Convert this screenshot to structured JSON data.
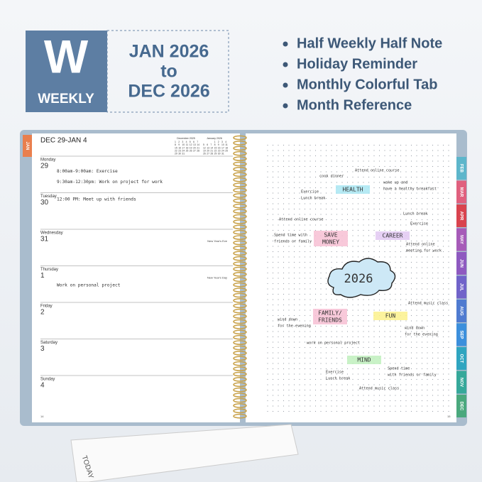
{
  "badge": {
    "letter": "W",
    "label": "WEEKLY",
    "range": [
      "JAN 2026",
      "to",
      "DEC 2026"
    ]
  },
  "features": [
    "Half Weekly Half Note",
    "Holiday Reminder",
    "Monthly Colorful Tab",
    "Month Reference"
  ],
  "left_page": {
    "tab": "JAN",
    "heading": "DEC 29-JAN 4",
    "page_number": "14",
    "mini_calendars": [
      {
        "title": "December 2025",
        "weeks": [
          [
            1,
            2,
            3,
            4,
            5,
            6,
            7
          ],
          [
            8,
            9,
            10,
            11,
            12,
            13,
            14
          ],
          [
            15,
            16,
            17,
            18,
            19,
            20,
            21
          ],
          [
            22,
            23,
            24,
            25,
            26,
            27,
            28
          ],
          [
            29,
            30,
            31
          ]
        ]
      },
      {
        "title": "January 2026",
        "weeks": [
          [
            null,
            null,
            null,
            1,
            2,
            3,
            4
          ],
          [
            5,
            6,
            7,
            8,
            9,
            10,
            11
          ],
          [
            12,
            13,
            14,
            15,
            16,
            17,
            18
          ],
          [
            19,
            20,
            21,
            22,
            23,
            24,
            25
          ],
          [
            26,
            27,
            28,
            29,
            30,
            31
          ]
        ]
      }
    ],
    "days": [
      {
        "name": "Monday",
        "date": 29,
        "entries": [
          "8:00am-9:00am: Exercise",
          "9:30am-12:30pm: Work on project for work"
        ]
      },
      {
        "name": "Tuesday",
        "date": 30,
        "entries": [
          "12:00 PM: Meet up with friends"
        ]
      },
      {
        "name": "Wednesday",
        "date": 31,
        "holiday": "New Year's Eve",
        "entries": []
      },
      {
        "name": "Thursday",
        "date": 1,
        "holiday": "New Year's Day",
        "entries": [
          "Work on personal project"
        ]
      },
      {
        "name": "Friday",
        "date": 2,
        "entries": []
      },
      {
        "name": "Saturday",
        "date": 3,
        "entries": []
      },
      {
        "name": "Sunday",
        "date": 4,
        "entries": []
      }
    ]
  },
  "right_page": {
    "page_number": "15",
    "tabs": [
      "FEB",
      "MAR",
      "APR",
      "MAY",
      "JUN",
      "JUL",
      "AUG",
      "SEP",
      "OCT",
      "NOV",
      "DEC"
    ],
    "center": "2026",
    "topics": [
      [
        "HEALTH"
      ],
      [
        "SAVE",
        "MONEY"
      ],
      [
        "CAREER"
      ],
      [
        "FAMILY/",
        "FRIENDS"
      ],
      [
        "FUN"
      ],
      [
        "MIND"
      ]
    ],
    "notes": [
      [
        "cook dinner"
      ],
      [
        "Attend online course"
      ],
      [
        "Exercise",
        "Lunch break"
      ],
      [
        "wake up and",
        "have a healthy breakfast"
      ],
      [
        "Attend online course"
      ],
      [
        "Lunch break"
      ],
      [
        "Exercise"
      ],
      [
        "Spend time with",
        "friends or family"
      ],
      [
        "Attend online",
        "meeting for work"
      ],
      [
        "Attend music class"
      ],
      [
        "wind down",
        "for the evening"
      ],
      [
        "wind down",
        "for the evening"
      ],
      [
        "work on personal project"
      ],
      [
        "Exercise",
        "Lunch break"
      ],
      [
        "Spend time",
        "with friends or family"
      ],
      [
        "Attend music class"
      ]
    ]
  },
  "ruler": {
    "label": "TODAY"
  }
}
